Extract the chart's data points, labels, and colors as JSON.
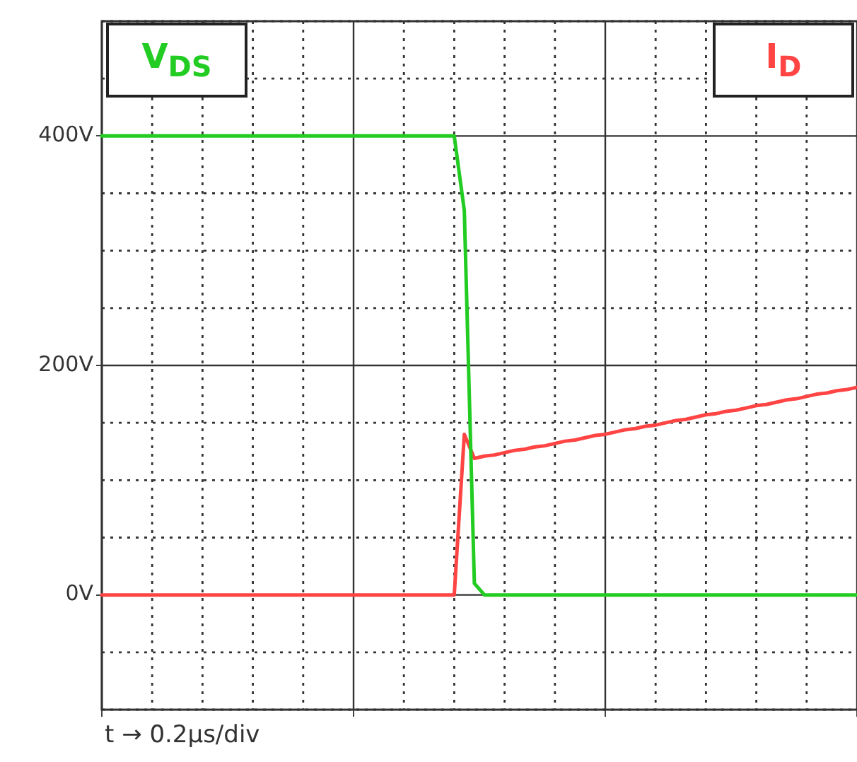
{
  "chart_data": {
    "type": "line",
    "annotations": [
      "t → 0.2µs/div"
    ],
    "categories": [
      null,
      null,
      null,
      null,
      null,
      null,
      null,
      null,
      null,
      null,
      null,
      null,
      null,
      null,
      null,
      null,
      null,
      null,
      null,
      null,
      null,
      null,
      null,
      null,
      null,
      null,
      null,
      null,
      null,
      null,
      null,
      null,
      null,
      null,
      null,
      null,
      null,
      null,
      null,
      null,
      null,
      null,
      null,
      null,
      null,
      null,
      null,
      null,
      null,
      null,
      null,
      null,
      null,
      null,
      null,
      null,
      null,
      null,
      null,
      null,
      null,
      null,
      null,
      null,
      null,
      null,
      null,
      null,
      null,
      null,
      null,
      null,
      null,
      null,
      null,
      null
    ],
    "ylim": [
      -100,
      500
    ],
    "yticks": [
      {
        "value": -100,
        "label": null
      },
      {
        "value": -50,
        "label": null
      },
      {
        "value": 0,
        "label": "0V"
      },
      {
        "value": 50,
        "label": null
      },
      {
        "value": 100,
        "label": null
      },
      {
        "value": 150,
        "label": null
      },
      {
        "value": 200,
        "label": "200V"
      },
      {
        "value": 250,
        "label": null
      },
      {
        "value": 300,
        "label": null
      },
      {
        "value": 350,
        "label": null
      },
      {
        "value": 400,
        "label": "400V"
      },
      {
        "value": 450,
        "label": null
      },
      {
        "value": 500,
        "label": null
      }
    ],
    "tick_labels": "y",
    "grid": true,
    "marker": "none",
    "line_style": "solid",
    "series": [
      {
        "name": "V$_{DS}$",
        "color": "#22cc22",
        "values": [
          400,
          400,
          400,
          400,
          400,
          400,
          400,
          400,
          400,
          400,
          400,
          400,
          400,
          400,
          400,
          400,
          400,
          400,
          400,
          400,
          400,
          400,
          400,
          400,
          400,
          400,
          400,
          400,
          400,
          400,
          400,
          400,
          400,
          400,
          400,
          400,
          335,
          10,
          0,
          0,
          0,
          0,
          0,
          0,
          0,
          0,
          0,
          0,
          0,
          0,
          0,
          0,
          0,
          0,
          0,
          0,
          0,
          0,
          0,
          0,
          0,
          0,
          0,
          0,
          0,
          0,
          0,
          0,
          0,
          0,
          0,
          0,
          0,
          0,
          0,
          0
        ]
      },
      {
        "name": "I$_{D}$",
        "color": "#ff4444",
        "values": [
          0,
          0,
          0,
          0,
          0,
          0,
          0,
          0,
          0,
          0,
          0,
          0,
          0,
          0,
          0,
          0,
          0,
          0,
          0,
          0,
          0,
          0,
          0,
          0,
          0,
          0,
          0,
          0,
          0,
          0,
          0,
          0,
          0,
          0,
          0,
          0,
          140,
          119,
          121,
          122,
          124,
          126,
          127,
          129,
          130,
          132,
          134,
          135,
          137,
          139,
          140,
          142,
          144,
          145,
          147,
          148,
          150,
          152,
          153,
          155,
          157,
          158,
          160,
          161,
          163,
          165,
          166,
          168,
          170,
          171,
          173,
          175,
          176,
          178,
          179,
          181
        ]
      }
    ]
  }
}
